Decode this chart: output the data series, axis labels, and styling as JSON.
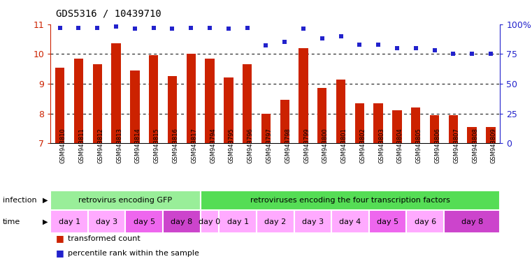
{
  "title": "GDS5316 / 10439710",
  "samples": [
    "GSM943810",
    "GSM943811",
    "GSM943812",
    "GSM943813",
    "GSM943814",
    "GSM943815",
    "GSM943816",
    "GSM943817",
    "GSM943794",
    "GSM943795",
    "GSM943796",
    "GSM943797",
    "GSM943798",
    "GSM943799",
    "GSM943800",
    "GSM943801",
    "GSM943802",
    "GSM943803",
    "GSM943804",
    "GSM943805",
    "GSM943806",
    "GSM943807",
    "GSM943808",
    "GSM943809"
  ],
  "red_values": [
    9.55,
    9.85,
    9.65,
    10.35,
    9.45,
    9.95,
    9.25,
    10.0,
    9.85,
    9.2,
    9.65,
    8.0,
    8.45,
    10.2,
    8.85,
    9.15,
    8.35,
    8.35,
    8.1,
    8.2,
    7.95,
    7.95,
    7.55,
    7.55
  ],
  "blue_values": [
    97,
    97,
    97,
    98,
    96,
    97,
    96,
    97,
    97,
    96,
    97,
    82,
    85,
    96,
    88,
    90,
    83,
    83,
    80,
    80,
    78,
    75,
    75,
    75
  ],
  "ylim_left": [
    7,
    11
  ],
  "ylim_right": [
    0,
    100
  ],
  "yticks_left": [
    7,
    8,
    9,
    10,
    11
  ],
  "yticks_right": [
    0,
    25,
    50,
    75,
    100
  ],
  "bar_color": "#cc2200",
  "dot_color": "#2222cc",
  "infection_groups": [
    {
      "label": "retrovirus encoding GFP",
      "start": 0,
      "end": 7,
      "color": "#99ee99"
    },
    {
      "label": "retroviruses encoding the four transcription factors",
      "start": 8,
      "end": 23,
      "color": "#55dd55"
    }
  ],
  "time_groups": [
    {
      "label": "day 1",
      "start": 0,
      "end": 1,
      "color": "#ffaaff"
    },
    {
      "label": "day 3",
      "start": 2,
      "end": 3,
      "color": "#ffaaff"
    },
    {
      "label": "day 5",
      "start": 4,
      "end": 5,
      "color": "#ee66ee"
    },
    {
      "label": "day 8",
      "start": 6,
      "end": 7,
      "color": "#cc44cc"
    },
    {
      "label": "day 0",
      "start": 8,
      "end": 8,
      "color": "#ffaaff"
    },
    {
      "label": "day 1",
      "start": 9,
      "end": 10,
      "color": "#ffaaff"
    },
    {
      "label": "day 2",
      "start": 11,
      "end": 12,
      "color": "#ffaaff"
    },
    {
      "label": "day 3",
      "start": 13,
      "end": 14,
      "color": "#ffaaff"
    },
    {
      "label": "day 4",
      "start": 15,
      "end": 16,
      "color": "#ffaaff"
    },
    {
      "label": "day 5",
      "start": 17,
      "end": 18,
      "color": "#ee66ee"
    },
    {
      "label": "day 6",
      "start": 19,
      "end": 20,
      "color": "#ffaaff"
    },
    {
      "label": "day 8",
      "start": 21,
      "end": 23,
      "color": "#cc44cc"
    }
  ],
  "legend_items": [
    {
      "label": "transformed count",
      "color": "#cc2200"
    },
    {
      "label": "percentile rank within the sample",
      "color": "#2222cc"
    }
  ],
  "bar_width": 0.5,
  "bg_color": "#ffffff",
  "tick_label_color": "#cc2200",
  "right_tick_color": "#2222cc",
  "xtick_bg_color": "#cccccc",
  "xtick_font_size": 6.0,
  "title_fontsize": 10
}
